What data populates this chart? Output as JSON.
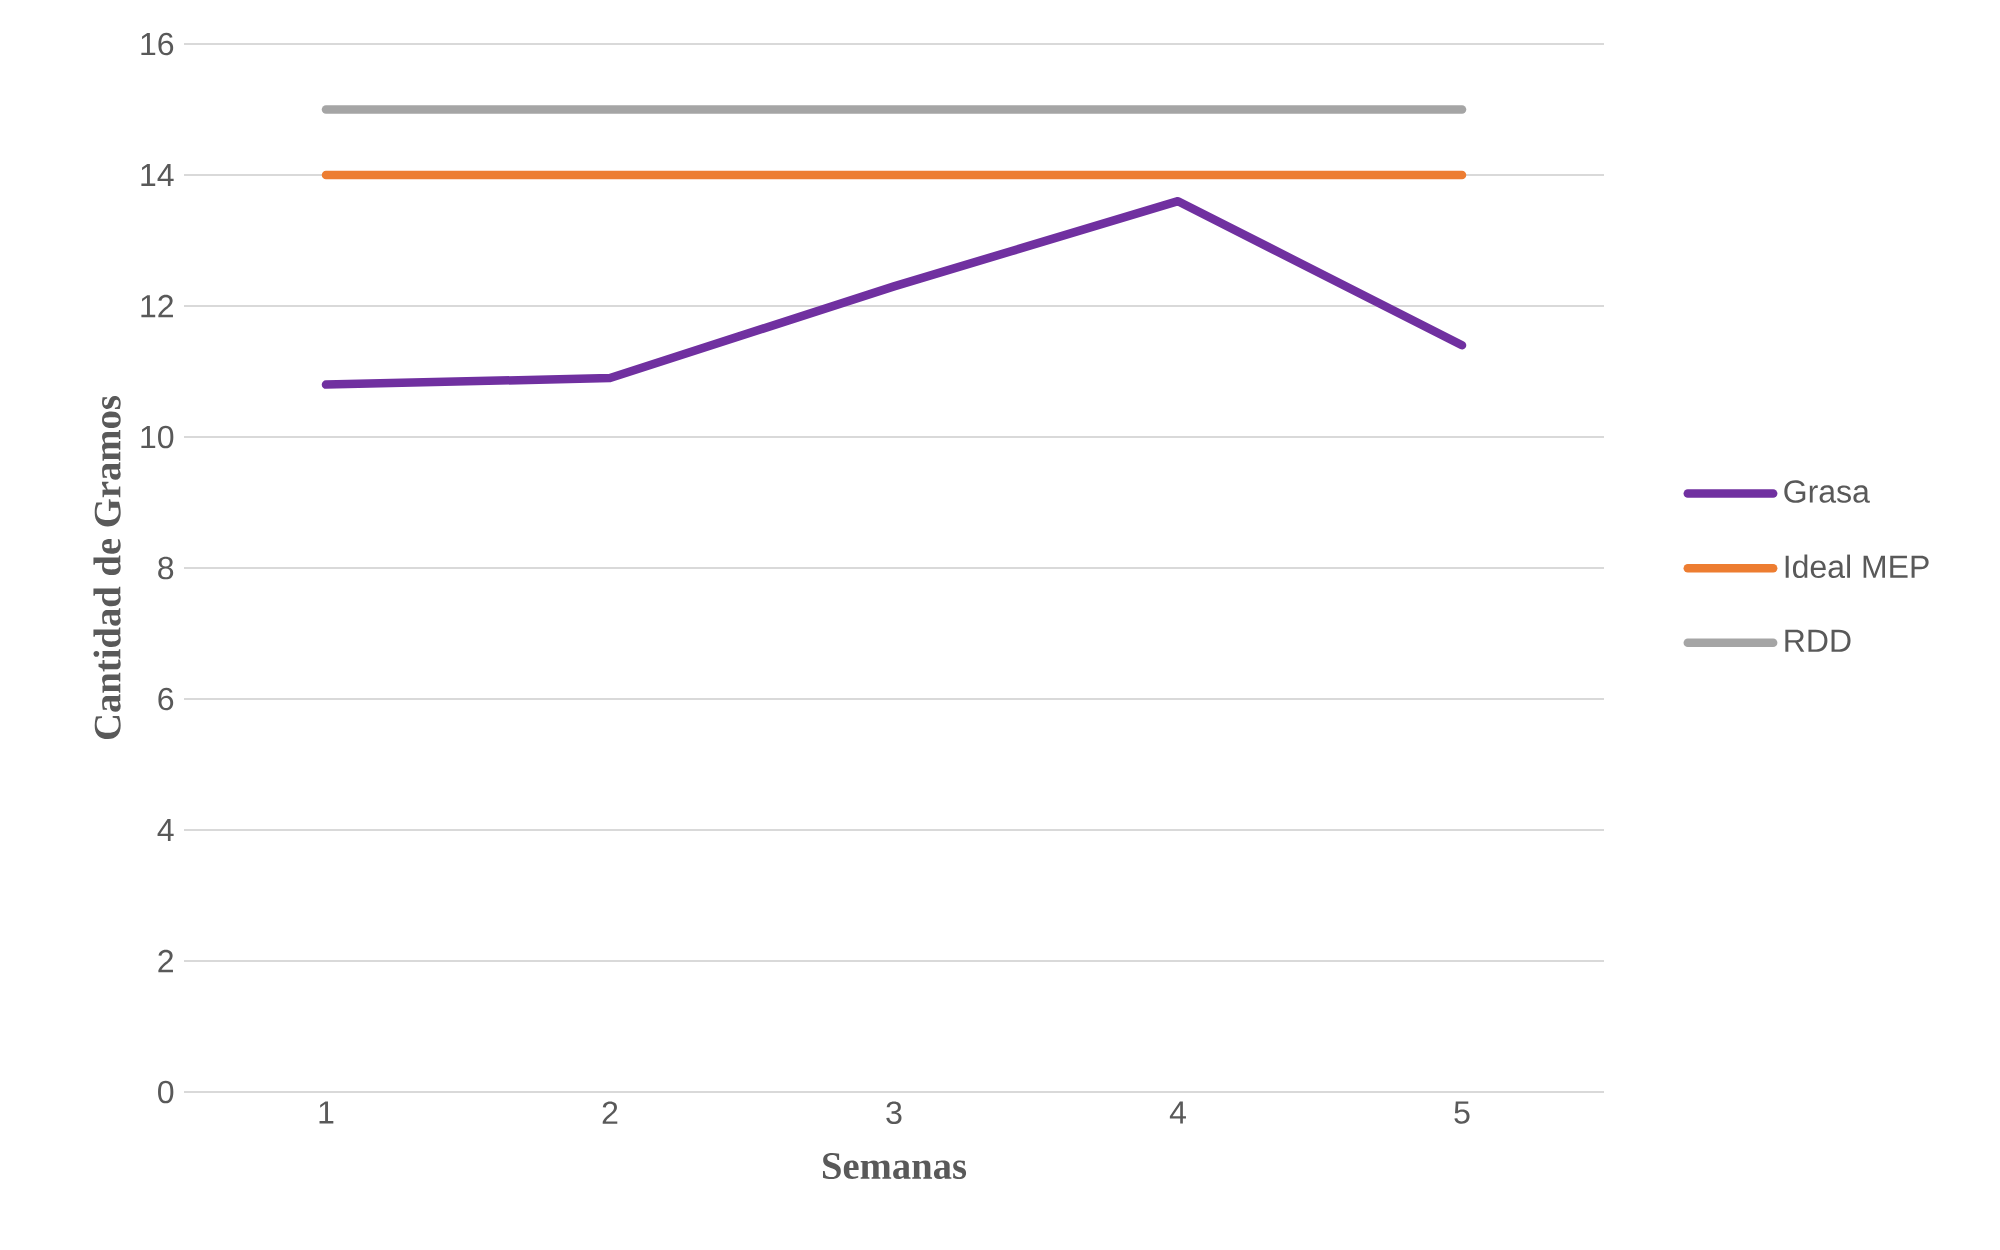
{
  "chart_data": {
    "type": "line",
    "xlabel": "Semanas",
    "ylabel": "Cantidad de Gramos",
    "categories": [
      "1",
      "2",
      "3",
      "4",
      "5"
    ],
    "series": [
      {
        "name": "Grasa",
        "color": "#7030a0",
        "values": [
          10.8,
          10.9,
          12.3,
          13.6,
          11.4
        ]
      },
      {
        "name": "Ideal MEP",
        "color": "#ed7d31",
        "values": [
          14,
          14,
          14,
          14,
          14
        ]
      },
      {
        "name": "RDD",
        "color": "#a5a5a5",
        "values": [
          15,
          15,
          15,
          15,
          15
        ]
      }
    ],
    "ylim": [
      0,
      16
    ],
    "yticks": [
      0,
      2,
      4,
      6,
      8,
      10,
      12,
      14,
      16
    ],
    "grid": "y",
    "legend": "right",
    "marker": "none",
    "line_style": "solid"
  }
}
